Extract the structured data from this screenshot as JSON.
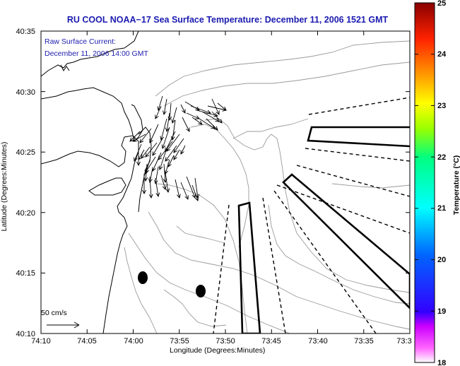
{
  "title": "RU COOL  NOAA−17  Sea Surface Temperature:  December 11, 2006 1521 GMT",
  "legend": {
    "line1": "Raw Surface Current:",
    "line2": "December 11, 2006 14:00 GMT"
  },
  "y_axis": {
    "label": "Latitude (Degrees:Minutes)",
    "ticks": [
      "40:35",
      "40:30",
      "40:25",
      "40:20",
      "40:15",
      "40:10"
    ]
  },
  "x_axis": {
    "label": "Longitude (Degrees:Minutes)",
    "ticks": [
      "74:10",
      "74:05",
      "74:00",
      "73:55",
      "73:50",
      "73:45",
      "73:40",
      "73:35",
      "73:3"
    ]
  },
  "colorbar": {
    "label": "Temperature (°C)",
    "ticks": [
      "25",
      "24",
      "23",
      "22",
      "21",
      "20",
      "19",
      "18"
    ],
    "range": [
      18,
      25
    ]
  },
  "scale": {
    "label": "50 cm/s"
  },
  "colors": {
    "title": "#1b1bb0",
    "legend": "#2020b0",
    "contours": "#9a9a9a",
    "arrows": "#000000"
  }
}
